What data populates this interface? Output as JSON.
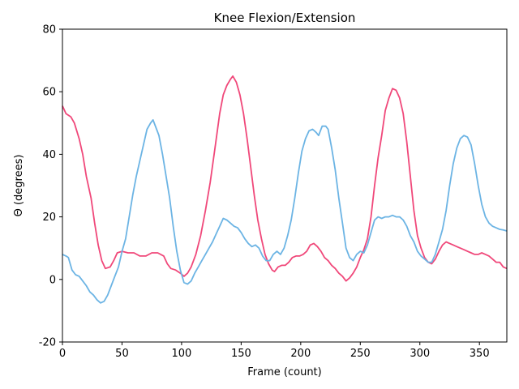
{
  "chart_data": {
    "type": "line",
    "title": "Knee Flexion/Extension",
    "xlabel": "Frame (count)",
    "ylabel": "Θ (degrees)",
    "xlim": [
      0,
      373
    ],
    "ylim": [
      -20,
      80
    ],
    "xticks": [
      0,
      50,
      100,
      150,
      200,
      250,
      300,
      350
    ],
    "yticks": [
      -20,
      0,
      20,
      40,
      60,
      80
    ],
    "grid": false,
    "legend": "none",
    "series": [
      {
        "color": "#f0487a",
        "points": [
          [
            0,
            55.5
          ],
          [
            3,
            53
          ],
          [
            7,
            52
          ],
          [
            10,
            50
          ],
          [
            14,
            45
          ],
          [
            17,
            40
          ],
          [
            20,
            33
          ],
          [
            24,
            26
          ],
          [
            27,
            18
          ],
          [
            30,
            11
          ],
          [
            33,
            6
          ],
          [
            36,
            3.5
          ],
          [
            40,
            4
          ],
          [
            43,
            6
          ],
          [
            46,
            8.5
          ],
          [
            50,
            9
          ],
          [
            55,
            8.5
          ],
          [
            60,
            8.5
          ],
          [
            65,
            7.5
          ],
          [
            70,
            7.5
          ],
          [
            75,
            8.5
          ],
          [
            80,
            8.5
          ],
          [
            85,
            7.5
          ],
          [
            88,
            5
          ],
          [
            91,
            3.5
          ],
          [
            95,
            3
          ],
          [
            99,
            2
          ],
          [
            102,
            1
          ],
          [
            105,
            2
          ],
          [
            108,
            4
          ],
          [
            112,
            8
          ],
          [
            116,
            14
          ],
          [
            120,
            22
          ],
          [
            124,
            31
          ],
          [
            128,
            42
          ],
          [
            132,
            53
          ],
          [
            135,
            59
          ],
          [
            138,
            62
          ],
          [
            141,
            64
          ],
          [
            143,
            65
          ],
          [
            146,
            63
          ],
          [
            149,
            59
          ],
          [
            152,
            53
          ],
          [
            155,
            45
          ],
          [
            158,
            36
          ],
          [
            161,
            27
          ],
          [
            164,
            19
          ],
          [
            167,
            13
          ],
          [
            170,
            8
          ],
          [
            173,
            5
          ],
          [
            176,
            3
          ],
          [
            178,
            2.5
          ],
          [
            181,
            4
          ],
          [
            184,
            4.5
          ],
          [
            187,
            4.5
          ],
          [
            190,
            5.5
          ],
          [
            193,
            7
          ],
          [
            196,
            7.5
          ],
          [
            199,
            7.5
          ],
          [
            202,
            8
          ],
          [
            205,
            9
          ],
          [
            208,
            11
          ],
          [
            211,
            11.5
          ],
          [
            214,
            10.5
          ],
          [
            217,
            9
          ],
          [
            220,
            7
          ],
          [
            223,
            6
          ],
          [
            226,
            4.5
          ],
          [
            229,
            3.5
          ],
          [
            232,
            2
          ],
          [
            235,
            1
          ],
          [
            238,
            -0.5
          ],
          [
            241,
            0.5
          ],
          [
            244,
            2
          ],
          [
            247,
            4
          ],
          [
            250,
            7
          ],
          [
            253,
            9.5
          ],
          [
            256,
            13
          ],
          [
            259,
            20
          ],
          [
            262,
            30
          ],
          [
            265,
            39
          ],
          [
            268,
            46
          ],
          [
            271,
            54
          ],
          [
            274,
            58
          ],
          [
            277,
            61
          ],
          [
            280,
            60.5
          ],
          [
            283,
            58
          ],
          [
            286,
            53
          ],
          [
            289,
            44
          ],
          [
            292,
            33
          ],
          [
            295,
            22
          ],
          [
            298,
            14
          ],
          [
            301,
            10
          ],
          [
            304,
            7
          ],
          [
            307,
            5.5
          ],
          [
            310,
            5
          ],
          [
            313,
            6.5
          ],
          [
            316,
            9
          ],
          [
            319,
            11
          ],
          [
            322,
            12
          ],
          [
            325,
            11.5
          ],
          [
            328,
            11
          ],
          [
            331,
            10.5
          ],
          [
            334,
            10
          ],
          [
            337,
            9.5
          ],
          [
            340,
            9
          ],
          [
            343,
            8.5
          ],
          [
            346,
            8
          ],
          [
            349,
            8
          ],
          [
            352,
            8.5
          ],
          [
            355,
            8
          ],
          [
            358,
            7.5
          ],
          [
            361,
            6.5
          ],
          [
            364,
            5.5
          ],
          [
            367,
            5.5
          ],
          [
            370,
            4
          ],
          [
            373,
            3.5
          ]
        ]
      },
      {
        "color": "#6cb4e4",
        "points": [
          [
            0,
            8
          ],
          [
            3,
            7.5
          ],
          [
            5,
            7
          ],
          [
            8,
            3
          ],
          [
            11,
            1.5
          ],
          [
            14,
            1
          ],
          [
            17,
            -0.5
          ],
          [
            20,
            -2
          ],
          [
            23,
            -4
          ],
          [
            26,
            -5
          ],
          [
            29,
            -6.5
          ],
          [
            32,
            -7.5
          ],
          [
            35,
            -7
          ],
          [
            38,
            -5
          ],
          [
            41,
            -2
          ],
          [
            44,
            1
          ],
          [
            47,
            4
          ],
          [
            50,
            9
          ],
          [
            53,
            13
          ],
          [
            56,
            20
          ],
          [
            59,
            27
          ],
          [
            62,
            33
          ],
          [
            65,
            38
          ],
          [
            68,
            43
          ],
          [
            71,
            48
          ],
          [
            74,
            50
          ],
          [
            76,
            51
          ],
          [
            79,
            48
          ],
          [
            81,
            46
          ],
          [
            84,
            40
          ],
          [
            87,
            33
          ],
          [
            90,
            26
          ],
          [
            93,
            17
          ],
          [
            96,
            9
          ],
          [
            99,
            3
          ],
          [
            102,
            -1
          ],
          [
            105,
            -1.5
          ],
          [
            108,
            -0.5
          ],
          [
            111,
            2
          ],
          [
            114,
            4
          ],
          [
            117,
            6
          ],
          [
            120,
            8
          ],
          [
            123,
            10
          ],
          [
            126,
            12
          ],
          [
            129,
            14.5
          ],
          [
            132,
            17
          ],
          [
            135,
            19.5
          ],
          [
            138,
            19
          ],
          [
            141,
            18
          ],
          [
            144,
            17
          ],
          [
            147,
            16.5
          ],
          [
            150,
            15
          ],
          [
            153,
            13
          ],
          [
            156,
            11.5
          ],
          [
            159,
            10.5
          ],
          [
            162,
            11
          ],
          [
            165,
            10
          ],
          [
            168,
            7.5
          ],
          [
            171,
            6
          ],
          [
            174,
            6
          ],
          [
            177,
            8
          ],
          [
            180,
            9
          ],
          [
            183,
            8
          ],
          [
            186,
            10
          ],
          [
            189,
            14
          ],
          [
            192,
            19
          ],
          [
            195,
            26
          ],
          [
            198,
            34
          ],
          [
            201,
            41
          ],
          [
            204,
            45
          ],
          [
            207,
            47.5
          ],
          [
            210,
            48
          ],
          [
            213,
            47
          ],
          [
            215,
            46
          ],
          [
            218,
            49
          ],
          [
            221,
            49
          ],
          [
            223,
            48
          ],
          [
            226,
            42
          ],
          [
            229,
            35
          ],
          [
            232,
            26
          ],
          [
            235,
            18
          ],
          [
            238,
            10
          ],
          [
            241,
            7
          ],
          [
            244,
            6
          ],
          [
            247,
            8
          ],
          [
            250,
            9
          ],
          [
            253,
            8.5
          ],
          [
            256,
            11
          ],
          [
            259,
            15
          ],
          [
            262,
            19
          ],
          [
            265,
            20
          ],
          [
            268,
            19.5
          ],
          [
            271,
            20
          ],
          [
            274,
            20
          ],
          [
            277,
            20.5
          ],
          [
            280,
            20
          ],
          [
            283,
            20
          ],
          [
            286,
            19
          ],
          [
            289,
            17
          ],
          [
            292,
            14
          ],
          [
            295,
            12
          ],
          [
            298,
            9
          ],
          [
            301,
            7.5
          ],
          [
            304,
            6.5
          ],
          [
            307,
            5.5
          ],
          [
            310,
            5.5
          ],
          [
            313,
            8
          ],
          [
            316,
            12
          ],
          [
            319,
            16
          ],
          [
            322,
            22
          ],
          [
            325,
            30
          ],
          [
            328,
            37
          ],
          [
            331,
            42
          ],
          [
            334,
            45
          ],
          [
            337,
            46
          ],
          [
            340,
            45.5
          ],
          [
            343,
            43
          ],
          [
            346,
            37
          ],
          [
            349,
            30
          ],
          [
            352,
            24
          ],
          [
            355,
            20
          ],
          [
            358,
            18
          ],
          [
            361,
            17
          ],
          [
            364,
            16.5
          ],
          [
            367,
            16
          ],
          [
            370,
            15.8
          ],
          [
            373,
            15.5
          ]
        ]
      }
    ]
  }
}
